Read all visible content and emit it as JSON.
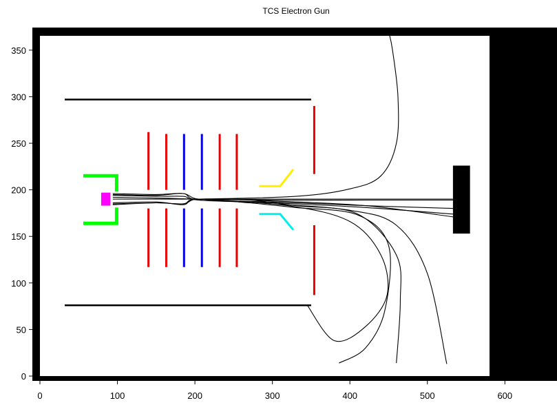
{
  "title": "TCS Electron Gun",
  "chart_data": {
    "type": "scatter",
    "title": "TCS Electron Gun",
    "xlabel": "",
    "ylabel": "",
    "xlim": [
      0,
      660
    ],
    "ylim": [
      0,
      365
    ],
    "x_ticks": [
      "0",
      "100",
      "200",
      "300",
      "400",
      "500",
      "600"
    ],
    "x_tick_values": [
      0,
      100,
      200,
      300,
      400,
      500,
      600
    ],
    "y_ticks": [
      "0",
      "50",
      "100",
      "150",
      "200",
      "250",
      "300",
      "350"
    ],
    "y_tick_values": [
      0,
      50,
      100,
      150,
      200,
      250,
      300,
      350
    ],
    "electrodes": [
      {
        "name": "outer-shield-top",
        "color": "#000000",
        "segments": [
          [
            [
              32,
              297
            ],
            [
              350,
              297
            ]
          ]
        ]
      },
      {
        "name": "outer-shield-bottom",
        "color": "#000000",
        "segments": [
          [
            [
              32,
              76
            ],
            [
              350,
              76
            ]
          ]
        ]
      },
      {
        "name": "cathode-holder",
        "color": "#00ff00",
        "segments": [
          [
            [
              56,
              215
            ],
            [
              99,
              215
            ],
            [
              99,
              198
            ]
          ],
          [
            [
              56,
              164
            ],
            [
              99,
              164
            ],
            [
              99,
              181
            ]
          ]
        ]
      },
      {
        "name": "lens-1-red",
        "color": "#e60000",
        "segments": [
          [
            [
              140,
              262
            ],
            [
              140,
              200
            ]
          ],
          [
            [
              140,
              180
            ],
            [
              140,
              117
            ]
          ]
        ]
      },
      {
        "name": "lens-2-red",
        "color": "#e60000",
        "segments": [
          [
            [
              163,
              260
            ],
            [
              163,
              200
            ]
          ],
          [
            [
              163,
              180
            ],
            [
              163,
              117
            ]
          ]
        ]
      },
      {
        "name": "lens-3-blue",
        "color": "#0000e0",
        "segments": [
          [
            [
              186,
              260
            ],
            [
              186,
              200
            ]
          ],
          [
            [
              186,
              180
            ],
            [
              186,
              117
            ]
          ]
        ]
      },
      {
        "name": "lens-4-blue",
        "color": "#0000e0",
        "segments": [
          [
            [
              209,
              260
            ],
            [
              209,
              200
            ]
          ],
          [
            [
              209,
              180
            ],
            [
              209,
              117
            ]
          ]
        ]
      },
      {
        "name": "lens-5-red",
        "color": "#e60000",
        "segments": [
          [
            [
              232,
              260
            ],
            [
              232,
              200
            ]
          ],
          [
            [
              232,
              180
            ],
            [
              232,
              117
            ]
          ]
        ]
      },
      {
        "name": "lens-6-red",
        "color": "#e60000",
        "segments": [
          [
            [
              254,
              260
            ],
            [
              254,
              200
            ]
          ],
          [
            [
              254,
              180
            ],
            [
              254,
              117
            ]
          ]
        ]
      },
      {
        "name": "deflector-yellow",
        "color": "#ffee00",
        "segments": [
          [
            [
              283,
              204
            ],
            [
              310,
              204
            ],
            [
              327,
              222
            ]
          ]
        ]
      },
      {
        "name": "deflector-cyan",
        "color": "#00eeee",
        "segments": [
          [
            [
              283,
              174
            ],
            [
              310,
              174
            ],
            [
              327,
              157
            ]
          ]
        ]
      },
      {
        "name": "anode-plate",
        "color": "#e60000",
        "segments": [
          [
            [
              354,
              290
            ],
            [
              354,
              217
            ]
          ],
          [
            [
              354,
              162
            ],
            [
              354,
              87
            ]
          ]
        ]
      }
    ],
    "cathode": {
      "color": "#ff00ff",
      "x": [
        79,
        91
      ],
      "y": [
        183,
        197
      ]
    },
    "target": {
      "color": "#000000",
      "x": [
        533,
        555
      ],
      "y": [
        153,
        226
      ]
    },
    "trajectories": [
      {
        "points": [
          [
            94,
            190
          ],
          [
            160,
            190
          ],
          [
            205,
            190
          ],
          [
            300,
            190
          ],
          [
            420,
            190
          ],
          [
            533,
            190
          ]
        ]
      },
      {
        "points": [
          [
            94,
            192
          ],
          [
            160,
            191
          ],
          [
            205,
            190
          ],
          [
            300,
            189
          ],
          [
            420,
            189
          ],
          [
            533,
            189
          ]
        ]
      },
      {
        "points": [
          [
            94,
            194
          ],
          [
            150,
            193
          ],
          [
            185,
            193
          ],
          [
            205,
            189
          ],
          [
            300,
            187
          ],
          [
            420,
            183
          ],
          [
            533,
            180
          ]
        ]
      },
      {
        "points": [
          [
            94,
            195
          ],
          [
            150,
            194
          ],
          [
            185,
            196
          ],
          [
            205,
            189
          ],
          [
            300,
            186
          ],
          [
            420,
            181
          ],
          [
            533,
            174
          ]
        ]
      },
      {
        "points": [
          [
            94,
            186
          ],
          [
            150,
            187
          ],
          [
            185,
            184
          ],
          [
            205,
            190
          ],
          [
            300,
            188
          ],
          [
            420,
            183
          ],
          [
            533,
            171
          ]
        ]
      },
      {
        "points": [
          [
            94,
            185
          ],
          [
            150,
            186
          ],
          [
            185,
            185
          ],
          [
            205,
            190
          ],
          [
            300,
            185
          ],
          [
            400,
            178
          ],
          [
            460,
            162
          ],
          [
            500,
            110
          ],
          [
            525,
            13
          ]
        ]
      },
      {
        "points": [
          [
            94,
            196
          ],
          [
            150,
            195
          ],
          [
            185,
            196
          ],
          [
            205,
            190
          ],
          [
            260,
            190
          ],
          [
            330,
            183
          ],
          [
            410,
            174
          ],
          [
            460,
            130
          ],
          [
            465,
            80
          ],
          [
            460,
            14
          ]
        ]
      },
      {
        "points": [
          [
            94,
            184
          ],
          [
            150,
            186
          ],
          [
            185,
            185
          ],
          [
            205,
            190
          ],
          [
            270,
            186
          ],
          [
            330,
            181
          ],
          [
            410,
            173
          ],
          [
            450,
            140
          ],
          [
            445,
            70
          ],
          [
            420,
            30
          ],
          [
            386,
            14
          ]
        ]
      },
      {
        "points": [
          [
            205,
            190
          ],
          [
            320,
            183
          ],
          [
            400,
            166
          ],
          [
            440,
            130
          ],
          [
            448,
            87
          ],
          [
            420,
            53
          ],
          [
            380,
            38
          ],
          [
            345,
            76
          ]
        ]
      },
      {
        "points": [
          [
            205,
            190
          ],
          [
            330,
            193
          ],
          [
            400,
            201
          ],
          [
            440,
            215
          ],
          [
            460,
            250
          ],
          [
            462,
            300
          ],
          [
            455,
            350
          ],
          [
            450,
            370
          ]
        ]
      }
    ]
  }
}
